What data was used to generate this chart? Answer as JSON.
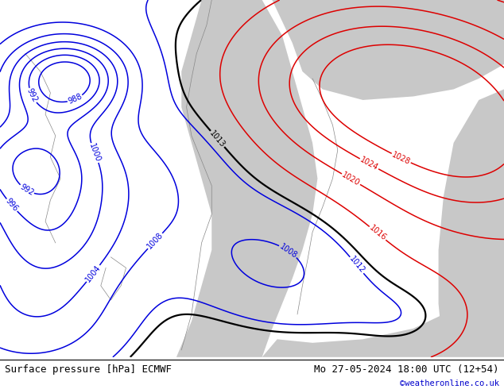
{
  "title_left": "Surface pressure [hPa] ECMWF",
  "title_right": "Mo 27-05-2024 18:00 UTC (12+54)",
  "copyright": "©weatheronline.co.uk",
  "land_green": "#c8f0a0",
  "sea_grey": "#c8c8c8",
  "bottom_bar_color": "#f2f2f2",
  "text_color": "#000000",
  "copyright_color": "#0000cc",
  "blue_color": "#0000dd",
  "red_color": "#dd0000",
  "black_color": "#000000",
  "coast_color": "#888888",
  "figsize": [
    6.34,
    4.9
  ],
  "dpi": 100
}
